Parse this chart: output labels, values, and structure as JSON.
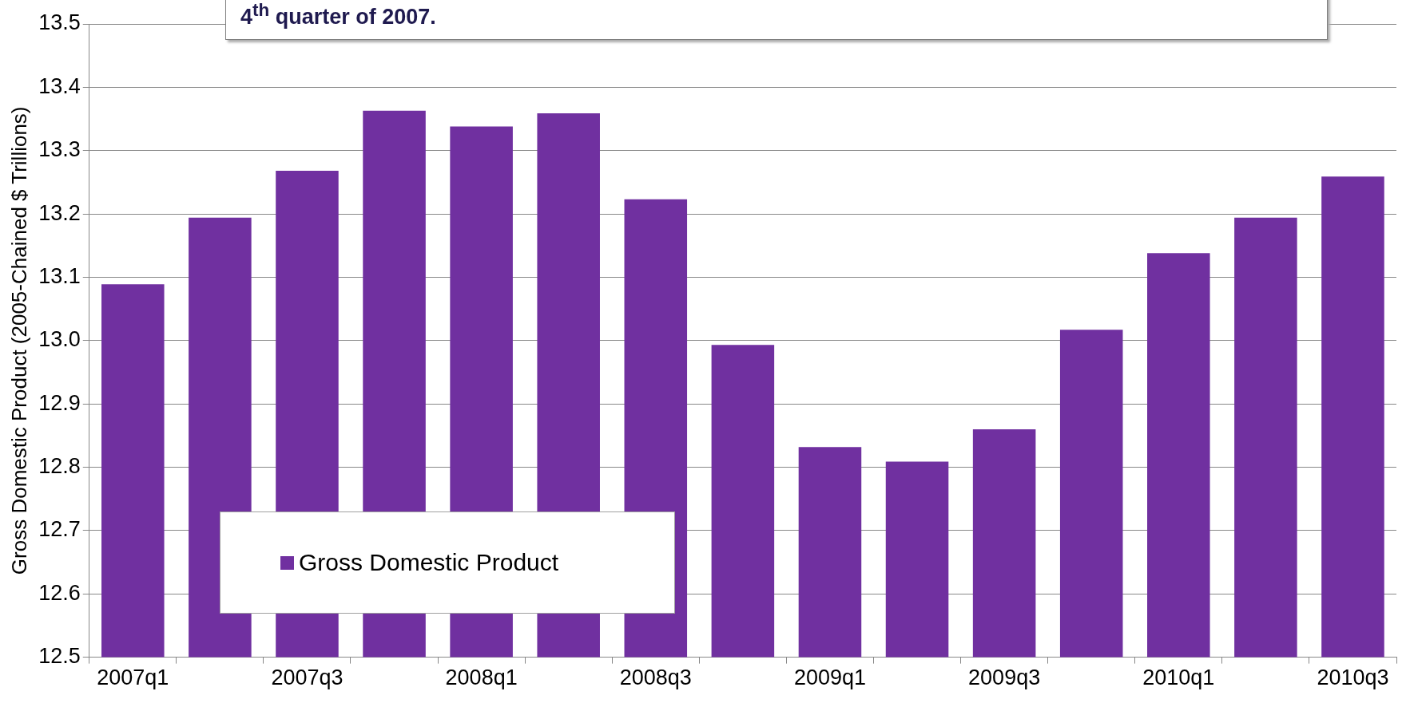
{
  "chart_data": {
    "type": "bar",
    "categories": [
      "2007q1",
      null,
      "2007q3",
      null,
      "2008q1",
      null,
      "2008q3",
      null,
      "2009q1",
      null,
      "2009q3",
      null,
      "2010q1",
      null,
      "2010q3"
    ],
    "series": [
      {
        "name": "Gross Domestic Product",
        "color": "#7030a0",
        "values": [
          13.089,
          13.194,
          13.268,
          13.363,
          13.338,
          13.359,
          13.223,
          12.993,
          12.832,
          12.809,
          12.86,
          13.017,
          13.138,
          13.194,
          13.259
        ]
      }
    ],
    "ylabel": "Gross Domestic Product (2005-Chained $ Trillions)",
    "ylim": [
      12.5,
      13.5
    ],
    "yticks": [
      12.5,
      12.6,
      12.7,
      12.8,
      12.9,
      {
        "value": 13,
        "label": "13.0"
      },
      13.1,
      13.2,
      13.3,
      13.4,
      13.5
    ],
    "grid": "y",
    "legend": "bottom left",
    "annotations": [
      "4$^{th}$ quarter of 2007."
    ]
  }
}
